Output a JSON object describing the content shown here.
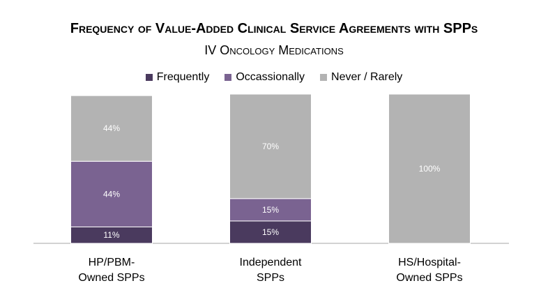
{
  "chart_data": {
    "type": "bar",
    "stacked": true,
    "title": "Frequency of Value-Added Clinical Service Agreements with SPPs",
    "subtitle": "IV Oncology Medications",
    "categories": [
      [
        "HP/PBM-",
        "Owned SPPs"
      ],
      [
        "Independent",
        "SPPs"
      ],
      [
        "HS/Hospital-",
        "Owned SPPs"
      ]
    ],
    "series": [
      {
        "name": "Frequently",
        "color": "#4a3a5e",
        "values": [
          11,
          15,
          0
        ],
        "labels": [
          "11%",
          "15%",
          ""
        ]
      },
      {
        "name": "Occassionally",
        "color": "#7a6391",
        "values": [
          44,
          15,
          0
        ],
        "labels": [
          "44%",
          "15%",
          ""
        ]
      },
      {
        "name": "Never / Rarely",
        "color": "#b3b3b3",
        "values": [
          44,
          70,
          100
        ],
        "labels": [
          "44%",
          "70%",
          "100%"
        ]
      }
    ],
    "ylim": [
      0,
      100
    ],
    "legend_position": "top"
  }
}
